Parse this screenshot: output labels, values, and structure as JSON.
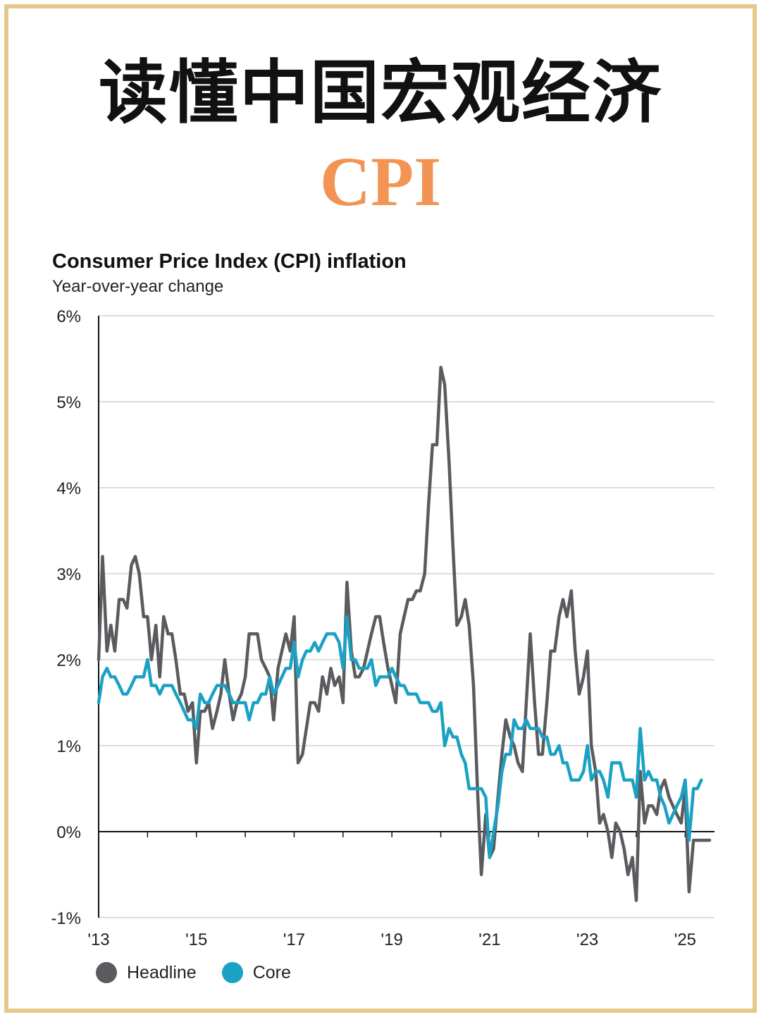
{
  "header": {
    "title": "读懂中国宏观经济",
    "subtitle": "CPI"
  },
  "colors": {
    "headline": "#5a5b5e",
    "core": "#1aa1c4",
    "accent": "#f29554",
    "frame": "#e6c98a"
  },
  "chart_data": {
    "type": "line",
    "title": "Consumer Price Index (CPI) inflation",
    "subtitle": "Year-over-year change",
    "xlabel": "",
    "ylabel": "",
    "ylim": [
      -1,
      6
    ],
    "xlim": [
      2013,
      2025.6
    ],
    "yticks": [
      -1,
      0,
      1,
      2,
      3,
      4,
      5,
      6
    ],
    "ytick_labels": [
      "-1%",
      "0%",
      "1%",
      "2%",
      "3%",
      "4%",
      "5%",
      "6%"
    ],
    "xticks": [
      2013,
      2015,
      2017,
      2019,
      2021,
      2023,
      2025
    ],
    "xtick_labels": [
      "'13",
      "'15",
      "'17",
      "'19",
      "'21",
      "'23",
      "'25"
    ],
    "grid": true,
    "legend": "bottom-left",
    "series": [
      {
        "name": "Headline",
        "color": "#5a5b5e",
        "points": [
          [
            2013.0,
            2.0
          ],
          [
            2013.08,
            3.2
          ],
          [
            2013.17,
            2.1
          ],
          [
            2013.25,
            2.4
          ],
          [
            2013.33,
            2.1
          ],
          [
            2013.42,
            2.7
          ],
          [
            2013.5,
            2.7
          ],
          [
            2013.58,
            2.6
          ],
          [
            2013.67,
            3.1
          ],
          [
            2013.75,
            3.2
          ],
          [
            2013.83,
            3.0
          ],
          [
            2013.92,
            2.5
          ],
          [
            2014.0,
            2.5
          ],
          [
            2014.08,
            2.0
          ],
          [
            2014.17,
            2.4
          ],
          [
            2014.25,
            1.8
          ],
          [
            2014.33,
            2.5
          ],
          [
            2014.42,
            2.3
          ],
          [
            2014.5,
            2.3
          ],
          [
            2014.58,
            2.0
          ],
          [
            2014.67,
            1.6
          ],
          [
            2014.75,
            1.6
          ],
          [
            2014.83,
            1.4
          ],
          [
            2014.92,
            1.5
          ],
          [
            2015.0,
            0.8
          ],
          [
            2015.08,
            1.4
          ],
          [
            2015.17,
            1.4
          ],
          [
            2015.25,
            1.5
          ],
          [
            2015.33,
            1.2
          ],
          [
            2015.42,
            1.4
          ],
          [
            2015.5,
            1.6
          ],
          [
            2015.58,
            2.0
          ],
          [
            2015.67,
            1.6
          ],
          [
            2015.75,
            1.3
          ],
          [
            2015.83,
            1.5
          ],
          [
            2015.92,
            1.6
          ],
          [
            2016.0,
            1.8
          ],
          [
            2016.08,
            2.3
          ],
          [
            2016.17,
            2.3
          ],
          [
            2016.25,
            2.3
          ],
          [
            2016.33,
            2.0
          ],
          [
            2016.42,
            1.9
          ],
          [
            2016.5,
            1.8
          ],
          [
            2016.58,
            1.3
          ],
          [
            2016.67,
            1.9
          ],
          [
            2016.75,
            2.1
          ],
          [
            2016.83,
            2.3
          ],
          [
            2016.92,
            2.1
          ],
          [
            2017.0,
            2.5
          ],
          [
            2017.08,
            0.8
          ],
          [
            2017.17,
            0.9
          ],
          [
            2017.25,
            1.2
          ],
          [
            2017.33,
            1.5
          ],
          [
            2017.42,
            1.5
          ],
          [
            2017.5,
            1.4
          ],
          [
            2017.58,
            1.8
          ],
          [
            2017.67,
            1.6
          ],
          [
            2017.75,
            1.9
          ],
          [
            2017.83,
            1.7
          ],
          [
            2017.92,
            1.8
          ],
          [
            2018.0,
            1.5
          ],
          [
            2018.08,
            2.9
          ],
          [
            2018.17,
            2.1
          ],
          [
            2018.25,
            1.8
          ],
          [
            2018.33,
            1.8
          ],
          [
            2018.42,
            1.9
          ],
          [
            2018.5,
            2.1
          ],
          [
            2018.58,
            2.3
          ],
          [
            2018.67,
            2.5
          ],
          [
            2018.75,
            2.5
          ],
          [
            2018.83,
            2.2
          ],
          [
            2018.92,
            1.9
          ],
          [
            2019.0,
            1.7
          ],
          [
            2019.08,
            1.5
          ],
          [
            2019.17,
            2.3
          ],
          [
            2019.25,
            2.5
          ],
          [
            2019.33,
            2.7
          ],
          [
            2019.42,
            2.7
          ],
          [
            2019.5,
            2.8
          ],
          [
            2019.58,
            2.8
          ],
          [
            2019.67,
            3.0
          ],
          [
            2019.75,
            3.8
          ],
          [
            2019.83,
            4.5
          ],
          [
            2019.92,
            4.5
          ],
          [
            2020.0,
            5.4
          ],
          [
            2020.08,
            5.2
          ],
          [
            2020.17,
            4.3
          ],
          [
            2020.25,
            3.3
          ],
          [
            2020.33,
            2.4
          ],
          [
            2020.42,
            2.5
          ],
          [
            2020.5,
            2.7
          ],
          [
            2020.58,
            2.4
          ],
          [
            2020.67,
            1.7
          ],
          [
            2020.75,
            0.5
          ],
          [
            2020.83,
            -0.5
          ],
          [
            2020.92,
            0.2
          ],
          [
            2021.0,
            -0.3
          ],
          [
            2021.08,
            -0.2
          ],
          [
            2021.17,
            0.4
          ],
          [
            2021.25,
            0.9
          ],
          [
            2021.33,
            1.3
          ],
          [
            2021.42,
            1.1
          ],
          [
            2021.5,
            1.0
          ],
          [
            2021.58,
            0.8
          ],
          [
            2021.67,
            0.7
          ],
          [
            2021.75,
            1.5
          ],
          [
            2021.83,
            2.3
          ],
          [
            2021.92,
            1.5
          ],
          [
            2022.0,
            0.9
          ],
          [
            2022.08,
            0.9
          ],
          [
            2022.17,
            1.5
          ],
          [
            2022.25,
            2.1
          ],
          [
            2022.33,
            2.1
          ],
          [
            2022.42,
            2.5
          ],
          [
            2022.5,
            2.7
          ],
          [
            2022.58,
            2.5
          ],
          [
            2022.67,
            2.8
          ],
          [
            2022.75,
            2.1
          ],
          [
            2022.83,
            1.6
          ],
          [
            2022.92,
            1.8
          ],
          [
            2023.0,
            2.1
          ],
          [
            2023.08,
            1.0
          ],
          [
            2023.17,
            0.7
          ],
          [
            2023.25,
            0.1
          ],
          [
            2023.33,
            0.2
          ],
          [
            2023.42,
            0.0
          ],
          [
            2023.5,
            -0.3
          ],
          [
            2023.58,
            0.1
          ],
          [
            2023.67,
            0.0
          ],
          [
            2023.75,
            -0.2
          ],
          [
            2023.83,
            -0.5
          ],
          [
            2023.92,
            -0.3
          ],
          [
            2024.0,
            -0.8
          ],
          [
            2024.08,
            0.7
          ],
          [
            2024.17,
            0.1
          ],
          [
            2024.25,
            0.3
          ],
          [
            2024.33,
            0.3
          ],
          [
            2024.42,
            0.2
          ],
          [
            2024.5,
            0.5
          ],
          [
            2024.58,
            0.6
          ],
          [
            2024.67,
            0.4
          ],
          [
            2024.75,
            0.3
          ],
          [
            2024.83,
            0.2
          ],
          [
            2024.92,
            0.1
          ],
          [
            2025.0,
            0.5
          ],
          [
            2025.08,
            -0.7
          ],
          [
            2025.17,
            -0.1
          ],
          [
            2025.25,
            -0.1
          ],
          [
            2025.33,
            -0.1
          ],
          [
            2025.42,
            -0.1
          ],
          [
            2025.5,
            -0.1
          ]
        ]
      },
      {
        "name": "Core",
        "color": "#1aa1c4",
        "points": [
          [
            2013.0,
            1.5
          ],
          [
            2013.08,
            1.8
          ],
          [
            2013.17,
            1.9
          ],
          [
            2013.25,
            1.8
          ],
          [
            2013.33,
            1.8
          ],
          [
            2013.42,
            1.7
          ],
          [
            2013.5,
            1.6
          ],
          [
            2013.58,
            1.6
          ],
          [
            2013.67,
            1.7
          ],
          [
            2013.75,
            1.8
          ],
          [
            2013.83,
            1.8
          ],
          [
            2013.92,
            1.8
          ],
          [
            2014.0,
            2.0
          ],
          [
            2014.08,
            1.7
          ],
          [
            2014.17,
            1.7
          ],
          [
            2014.25,
            1.6
          ],
          [
            2014.33,
            1.7
          ],
          [
            2014.42,
            1.7
          ],
          [
            2014.5,
            1.7
          ],
          [
            2014.58,
            1.6
          ],
          [
            2014.67,
            1.5
          ],
          [
            2014.75,
            1.4
          ],
          [
            2014.83,
            1.3
          ],
          [
            2014.92,
            1.3
          ],
          [
            2015.0,
            1.2
          ],
          [
            2015.08,
            1.6
          ],
          [
            2015.17,
            1.5
          ],
          [
            2015.25,
            1.5
          ],
          [
            2015.33,
            1.6
          ],
          [
            2015.42,
            1.7
          ],
          [
            2015.5,
            1.7
          ],
          [
            2015.58,
            1.7
          ],
          [
            2015.67,
            1.6
          ],
          [
            2015.75,
            1.5
          ],
          [
            2015.83,
            1.5
          ],
          [
            2015.92,
            1.5
          ],
          [
            2016.0,
            1.5
          ],
          [
            2016.08,
            1.3
          ],
          [
            2016.17,
            1.5
          ],
          [
            2016.25,
            1.5
          ],
          [
            2016.33,
            1.6
          ],
          [
            2016.42,
            1.6
          ],
          [
            2016.5,
            1.8
          ],
          [
            2016.58,
            1.6
          ],
          [
            2016.67,
            1.7
          ],
          [
            2016.75,
            1.8
          ],
          [
            2016.83,
            1.9
          ],
          [
            2016.92,
            1.9
          ],
          [
            2017.0,
            2.2
          ],
          [
            2017.08,
            1.8
          ],
          [
            2017.17,
            2.0
          ],
          [
            2017.25,
            2.1
          ],
          [
            2017.33,
            2.1
          ],
          [
            2017.42,
            2.2
          ],
          [
            2017.5,
            2.1
          ],
          [
            2017.58,
            2.2
          ],
          [
            2017.67,
            2.3
          ],
          [
            2017.75,
            2.3
          ],
          [
            2017.83,
            2.3
          ],
          [
            2017.92,
            2.2
          ],
          [
            2018.0,
            1.9
          ],
          [
            2018.08,
            2.5
          ],
          [
            2018.17,
            2.0
          ],
          [
            2018.25,
            2.0
          ],
          [
            2018.33,
            1.9
          ],
          [
            2018.42,
            1.9
          ],
          [
            2018.5,
            1.9
          ],
          [
            2018.58,
            2.0
          ],
          [
            2018.67,
            1.7
          ],
          [
            2018.75,
            1.8
          ],
          [
            2018.83,
            1.8
          ],
          [
            2018.92,
            1.8
          ],
          [
            2019.0,
            1.9
          ],
          [
            2019.08,
            1.8
          ],
          [
            2019.17,
            1.7
          ],
          [
            2019.25,
            1.7
          ],
          [
            2019.33,
            1.6
          ],
          [
            2019.42,
            1.6
          ],
          [
            2019.5,
            1.6
          ],
          [
            2019.58,
            1.5
          ],
          [
            2019.67,
            1.5
          ],
          [
            2019.75,
            1.5
          ],
          [
            2019.83,
            1.4
          ],
          [
            2019.92,
            1.4
          ],
          [
            2020.0,
            1.5
          ],
          [
            2020.08,
            1.0
          ],
          [
            2020.17,
            1.2
          ],
          [
            2020.25,
            1.1
          ],
          [
            2020.33,
            1.1
          ],
          [
            2020.42,
            0.9
          ],
          [
            2020.5,
            0.8
          ],
          [
            2020.58,
            0.5
          ],
          [
            2020.67,
            0.5
          ],
          [
            2020.75,
            0.5
          ],
          [
            2020.83,
            0.5
          ],
          [
            2020.92,
            0.4
          ],
          [
            2021.0,
            -0.3
          ],
          [
            2021.08,
            0.0
          ],
          [
            2021.17,
            0.3
          ],
          [
            2021.25,
            0.7
          ],
          [
            2021.33,
            0.9
          ],
          [
            2021.42,
            0.9
          ],
          [
            2021.5,
            1.3
          ],
          [
            2021.58,
            1.2
          ],
          [
            2021.67,
            1.2
          ],
          [
            2021.75,
            1.3
          ],
          [
            2021.83,
            1.2
          ],
          [
            2021.92,
            1.2
          ],
          [
            2022.0,
            1.2
          ],
          [
            2022.08,
            1.1
          ],
          [
            2022.17,
            1.1
          ],
          [
            2022.25,
            0.9
          ],
          [
            2022.33,
            0.9
          ],
          [
            2022.42,
            1.0
          ],
          [
            2022.5,
            0.8
          ],
          [
            2022.58,
            0.8
          ],
          [
            2022.67,
            0.6
          ],
          [
            2022.75,
            0.6
          ],
          [
            2022.83,
            0.6
          ],
          [
            2022.92,
            0.7
          ],
          [
            2023.0,
            1.0
          ],
          [
            2023.08,
            0.6
          ],
          [
            2023.17,
            0.7
          ],
          [
            2023.25,
            0.7
          ],
          [
            2023.33,
            0.6
          ],
          [
            2023.42,
            0.4
          ],
          [
            2023.5,
            0.8
          ],
          [
            2023.58,
            0.8
          ],
          [
            2023.67,
            0.8
          ],
          [
            2023.75,
            0.6
          ],
          [
            2023.83,
            0.6
          ],
          [
            2023.92,
            0.6
          ],
          [
            2024.0,
            0.4
          ],
          [
            2024.08,
            1.2
          ],
          [
            2024.17,
            0.6
          ],
          [
            2024.25,
            0.7
          ],
          [
            2024.33,
            0.6
          ],
          [
            2024.42,
            0.6
          ],
          [
            2024.5,
            0.4
          ],
          [
            2024.58,
            0.3
          ],
          [
            2024.67,
            0.1
          ],
          [
            2024.75,
            0.2
          ],
          [
            2024.83,
            0.3
          ],
          [
            2024.92,
            0.4
          ],
          [
            2025.0,
            0.6
          ],
          [
            2025.08,
            -0.1
          ],
          [
            2025.17,
            0.5
          ],
          [
            2025.25,
            0.5
          ],
          [
            2025.33,
            0.6
          ]
        ]
      }
    ]
  }
}
